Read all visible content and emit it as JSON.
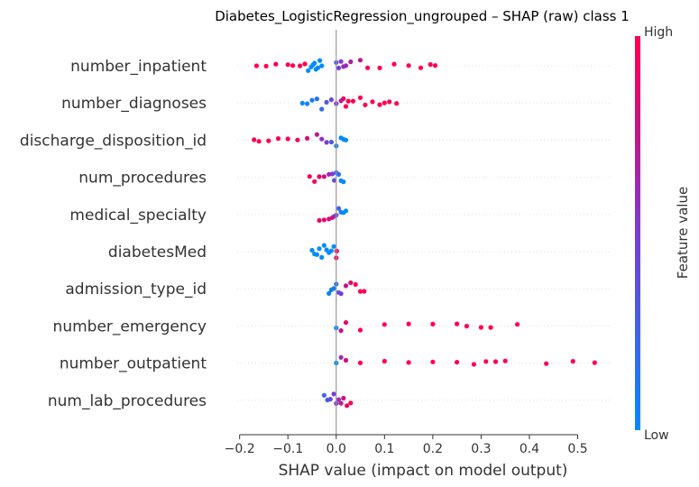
{
  "chart_data": {
    "type": "scatter",
    "subtype": "shap-beeswarm",
    "title": "Diabetes_LogisticRegression_ungrouped – SHAP (raw) class 1",
    "xlabel": "SHAP value (impact on model output)",
    "xlim": [
      -0.205,
      0.57
    ],
    "xticks": [
      -0.2,
      -0.1,
      0.0,
      0.1,
      0.2,
      0.3,
      0.4,
      0.5
    ],
    "xtick_labels": [
      "−0.2",
      "−0.1",
      "0.0",
      "0.1",
      "0.2",
      "0.3",
      "0.4",
      "0.5"
    ],
    "colorbar": {
      "label": "Feature value",
      "high_label": "High",
      "low_label": "Low",
      "high_color": "#ff0052",
      "low_color": "#008bfb"
    },
    "grid": false,
    "features": [
      {
        "name": "number_inpatient",
        "points": [
          [
            -0.165,
            1
          ],
          [
            -0.145,
            1
          ],
          [
            -0.125,
            1
          ],
          [
            -0.1,
            1
          ],
          [
            -0.09,
            1
          ],
          [
            -0.075,
            1
          ],
          [
            -0.065,
            1
          ],
          [
            -0.058,
            0
          ],
          [
            -0.052,
            0
          ],
          [
            -0.048,
            0
          ],
          [
            -0.045,
            0
          ],
          [
            -0.042,
            0
          ],
          [
            -0.038,
            0
          ],
          [
            -0.034,
            0
          ],
          [
            -0.03,
            0
          ],
          [
            0.0,
            0.4
          ],
          [
            0.005,
            0.5
          ],
          [
            0.01,
            0.5
          ],
          [
            0.015,
            0.6
          ],
          [
            0.02,
            0.6
          ],
          [
            0.03,
            0.7
          ],
          [
            0.05,
            0.75
          ],
          [
            0.065,
            1
          ],
          [
            0.09,
            1
          ],
          [
            0.12,
            1
          ],
          [
            0.15,
            1
          ],
          [
            0.175,
            1
          ],
          [
            0.195,
            1
          ],
          [
            0.205,
            1
          ]
        ]
      },
      {
        "name": "number_diagnoses",
        "points": [
          [
            -0.07,
            0
          ],
          [
            -0.06,
            0.05
          ],
          [
            -0.05,
            0.1
          ],
          [
            -0.04,
            0.15
          ],
          [
            -0.03,
            0.2
          ],
          [
            -0.02,
            0.3
          ],
          [
            -0.01,
            0.4
          ],
          [
            0.0,
            0.5
          ],
          [
            0.01,
            0.7
          ],
          [
            0.015,
            0.9
          ],
          [
            0.02,
            1
          ],
          [
            0.025,
            1
          ],
          [
            0.035,
            1
          ],
          [
            0.05,
            1
          ],
          [
            0.06,
            1
          ],
          [
            0.075,
            1
          ],
          [
            0.09,
            1
          ],
          [
            0.1,
            1
          ],
          [
            0.11,
            1
          ],
          [
            0.125,
            1
          ]
        ]
      },
      {
        "name": "discharge_disposition_id",
        "points": [
          [
            -0.17,
            1
          ],
          [
            -0.16,
            1
          ],
          [
            -0.14,
            1
          ],
          [
            -0.12,
            1
          ],
          [
            -0.1,
            1
          ],
          [
            -0.08,
            0.95
          ],
          [
            -0.06,
            0.85
          ],
          [
            -0.04,
            0.7
          ],
          [
            -0.03,
            0.55
          ],
          [
            -0.02,
            0.5
          ],
          [
            -0.01,
            0.3
          ],
          [
            0.0,
            0.1
          ],
          [
            0.01,
            0
          ],
          [
            0.015,
            0
          ],
          [
            0.02,
            0
          ]
        ]
      },
      {
        "name": "num_procedures",
        "points": [
          [
            -0.055,
            1
          ],
          [
            -0.045,
            0.95
          ],
          [
            -0.035,
            0.9
          ],
          [
            -0.025,
            0.8
          ],
          [
            -0.015,
            0.65
          ],
          [
            -0.008,
            0.5
          ],
          [
            -0.004,
            0.4
          ],
          [
            0.0,
            0.25
          ],
          [
            0.005,
            0.15
          ],
          [
            0.01,
            0.05
          ],
          [
            0.015,
            0
          ]
        ]
      },
      {
        "name": "medical_specialty",
        "points": [
          [
            -0.035,
            0.9
          ],
          [
            -0.025,
            0.9
          ],
          [
            -0.015,
            0.85
          ],
          [
            -0.008,
            0.8
          ],
          [
            -0.004,
            0.65
          ],
          [
            0.0,
            0.45
          ],
          [
            0.005,
            0.25
          ],
          [
            0.01,
            0.1
          ],
          [
            0.015,
            0
          ],
          [
            0.02,
            0
          ]
        ]
      },
      {
        "name": "diabetesMed",
        "points": [
          [
            -0.05,
            0
          ],
          [
            -0.045,
            0
          ],
          [
            -0.04,
            0
          ],
          [
            -0.035,
            0
          ],
          [
            -0.03,
            0
          ],
          [
            -0.025,
            0
          ],
          [
            -0.02,
            0
          ],
          [
            -0.015,
            0
          ],
          [
            -0.01,
            0
          ],
          [
            -0.005,
            0
          ],
          [
            0.0,
            1
          ],
          [
            0.001,
            1
          ]
        ]
      },
      {
        "name": "admission_type_id",
        "points": [
          [
            -0.015,
            0.05
          ],
          [
            -0.01,
            0.05
          ],
          [
            -0.005,
            0.1
          ],
          [
            0.0,
            0.2
          ],
          [
            0.005,
            0.35
          ],
          [
            0.01,
            0.5
          ],
          [
            0.02,
            0.75
          ],
          [
            0.03,
            0.9
          ],
          [
            0.04,
            1
          ],
          [
            0.05,
            1
          ],
          [
            0.058,
            1
          ]
        ]
      },
      {
        "name": "number_emergency",
        "points": [
          [
            0.0,
            0
          ],
          [
            0.01,
            0.75
          ],
          [
            0.02,
            0.9
          ],
          [
            0.05,
            1
          ],
          [
            0.1,
            1
          ],
          [
            0.15,
            1
          ],
          [
            0.2,
            1
          ],
          [
            0.25,
            1
          ],
          [
            0.27,
            1
          ],
          [
            0.3,
            1
          ],
          [
            0.32,
            1
          ],
          [
            0.375,
            1
          ]
        ]
      },
      {
        "name": "number_outpatient",
        "points": [
          [
            0.0,
            0
          ],
          [
            0.01,
            0.6
          ],
          [
            0.02,
            0.85
          ],
          [
            0.05,
            1
          ],
          [
            0.1,
            1
          ],
          [
            0.15,
            1
          ],
          [
            0.2,
            1
          ],
          [
            0.25,
            1
          ],
          [
            0.285,
            1
          ],
          [
            0.31,
            1
          ],
          [
            0.33,
            1
          ],
          [
            0.35,
            1
          ],
          [
            0.435,
            1
          ],
          [
            0.49,
            1
          ],
          [
            0.535,
            1
          ]
        ]
      },
      {
        "name": "num_lab_procedures",
        "points": [
          [
            -0.025,
            0.2
          ],
          [
            -0.018,
            0.3
          ],
          [
            -0.012,
            0.4
          ],
          [
            -0.005,
            0.5
          ],
          [
            0.0,
            0.55
          ],
          [
            0.005,
            0.6
          ],
          [
            0.01,
            0.7
          ],
          [
            0.015,
            0.8
          ],
          [
            0.022,
            0.9
          ],
          [
            0.03,
            1
          ]
        ]
      }
    ]
  }
}
